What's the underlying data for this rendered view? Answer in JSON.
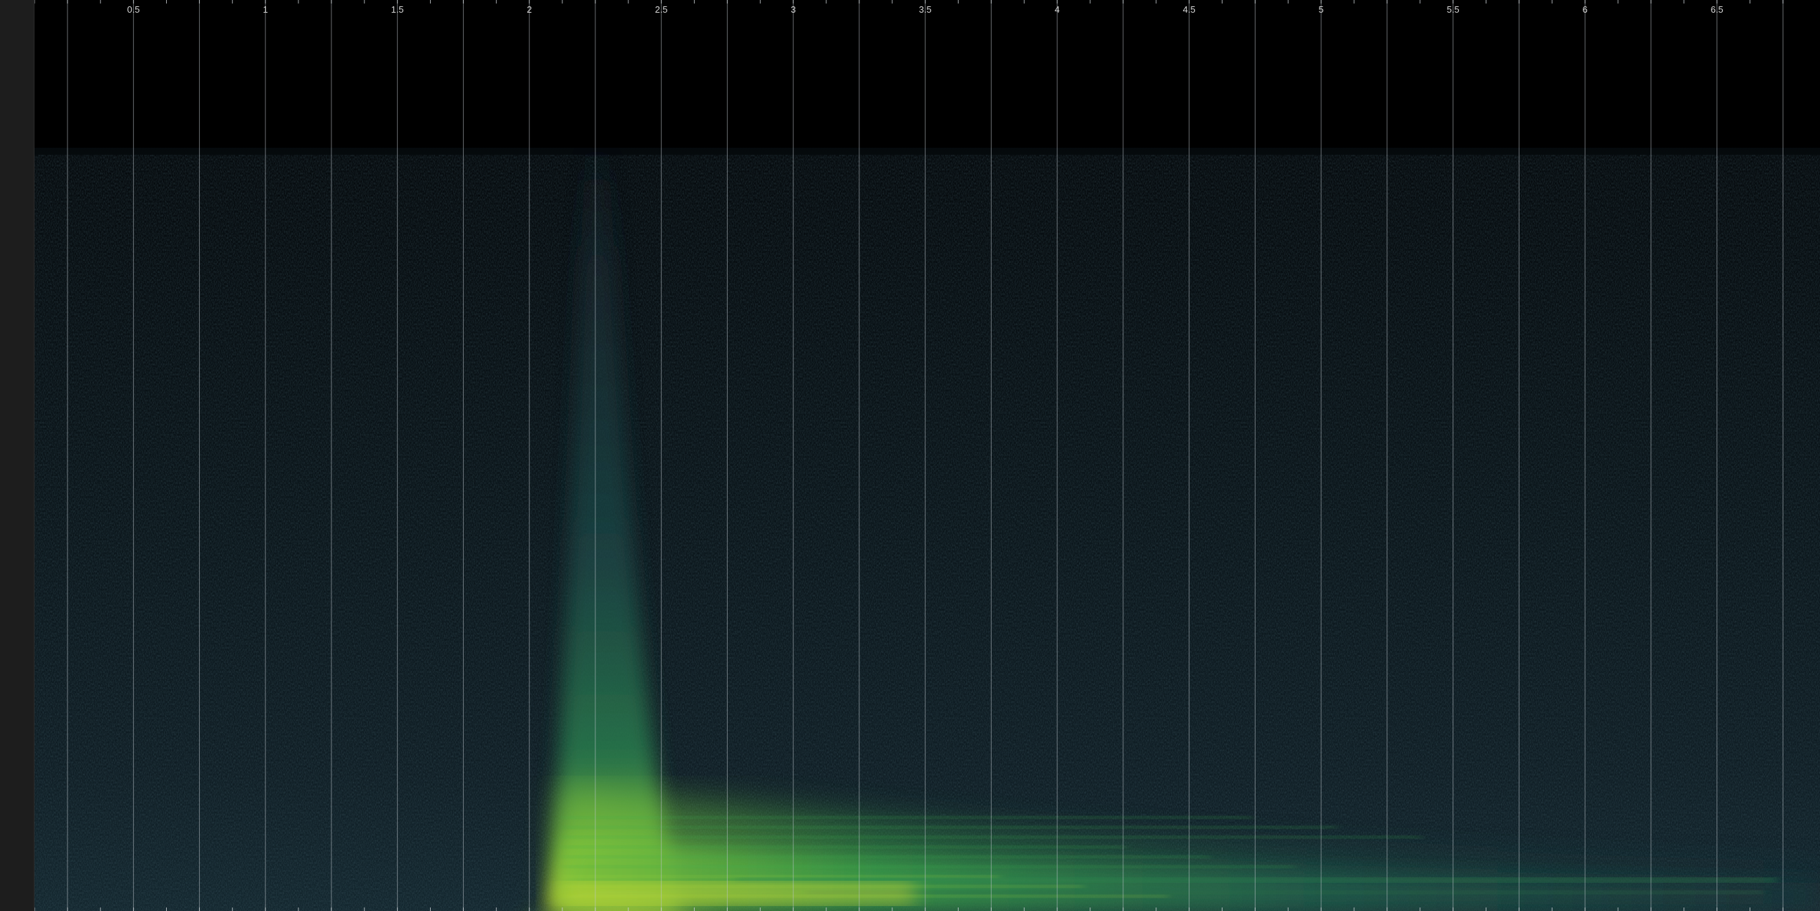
{
  "timeline": {
    "tick_labels": [
      "0.5",
      "1",
      "1.5",
      "2",
      "2.5",
      "3",
      "3.5",
      "4",
      "4.5",
      "5",
      "5.5",
      "6",
      "6.5"
    ],
    "tick_values": [
      0.5,
      1,
      1.5,
      2,
      2.5,
      3,
      3.5,
      4,
      4.5,
      5,
      5.5,
      6,
      6.5
    ],
    "minor_step": 0.125,
    "range": [
      0.125,
      6.75
    ]
  },
  "spectrogram": {
    "colormap": [
      "#000000",
      "#0c1a22",
      "#16323a",
      "#1f5a4a",
      "#2e8a4a",
      "#7fc23a",
      "#e2e030",
      "#f08020"
    ],
    "grid_color": "#bfc7cc",
    "onset_time": 2.1,
    "peak_time": 2.25
  },
  "colors": {
    "background": "#000000",
    "left_bar": "#1d1d1d",
    "tick_text": "#d8d8d8"
  }
}
